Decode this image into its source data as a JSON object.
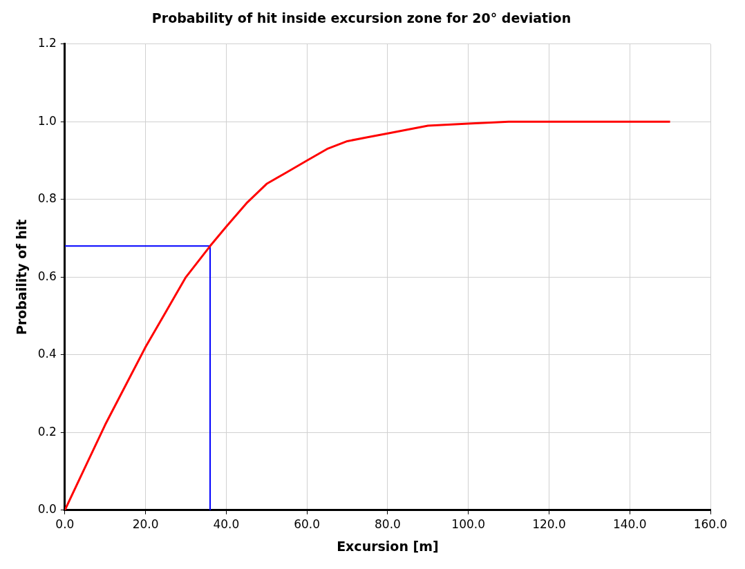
{
  "chart_data": {
    "type": "line",
    "title": "Probability of hit inside excursion zone for 20° deviation",
    "xlabel": "Excursion [m]",
    "ylabel": "Probaility of hit",
    "xlim": [
      0,
      160
    ],
    "xticks": [
      {
        "value": 0,
        "label": "0.0"
      },
      {
        "value": 20,
        "label": "20.0"
      },
      {
        "value": 40,
        "label": "40.0"
      },
      {
        "value": 60,
        "label": "60.0"
      },
      {
        "value": 80,
        "label": "80.0"
      },
      {
        "value": 100,
        "label": "100.0"
      },
      {
        "value": 120,
        "label": "120.0"
      },
      {
        "value": 140,
        "label": "140.0"
      },
      {
        "value": 160,
        "label": "160.0"
      }
    ],
    "ylim": [
      0,
      1.2
    ],
    "yticks": [
      {
        "value": 0,
        "label": "0.0"
      },
      {
        "value": 0.2,
        "label": "0.2"
      },
      {
        "value": 0.4,
        "label": "0.4"
      },
      {
        "value": 0.6,
        "label": "0.6"
      },
      {
        "value": 0.8,
        "label": "0.8"
      },
      {
        "value": 1,
        "label": "1.0"
      },
      {
        "value": 1.2,
        "label": "1.2"
      }
    ],
    "grid": true,
    "legend": false,
    "marker": "none",
    "series": [
      {
        "color": "#ff0000",
        "x": [
          0,
          5,
          10,
          15,
          20,
          25,
          30,
          36,
          40,
          45,
          50,
          55,
          60,
          65,
          70,
          75,
          80,
          90,
          100,
          110,
          120,
          130,
          150
        ],
        "values": [
          0,
          0.11,
          0.22,
          0.32,
          0.42,
          0.51,
          0.6,
          0.68,
          0.73,
          0.79,
          0.84,
          0.87,
          0.9,
          0.93,
          0.95,
          0.96,
          0.97,
          0.99,
          0.995,
          1,
          1,
          1,
          1
        ]
      },
      {
        "color": "#0000ff",
        "x": [
          0,
          36,
          36
        ],
        "values": [
          0.68,
          0.68,
          0
        ]
      }
    ]
  }
}
